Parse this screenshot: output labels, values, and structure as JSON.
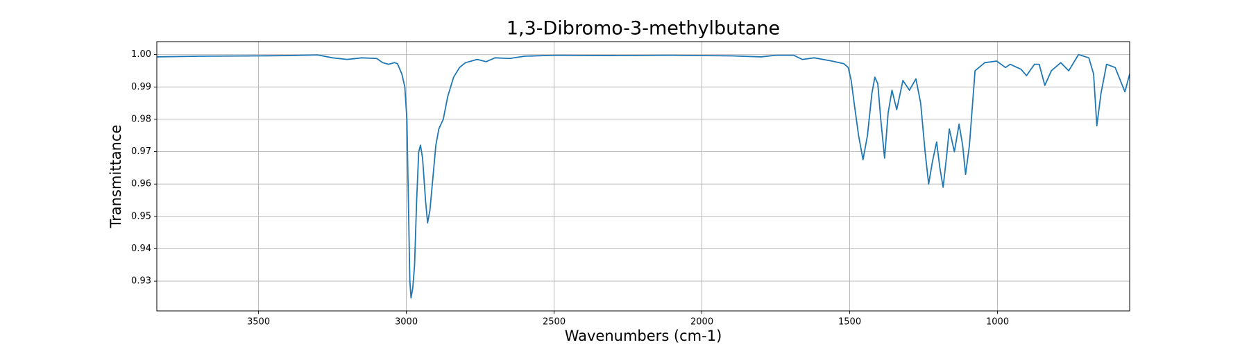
{
  "chart_data": {
    "type": "line",
    "title": "1,3-Dibromo-3-methylbutane",
    "xlabel": "Wavenumbers (cm-1)",
    "ylabel": "Transmittance",
    "color": "#1f77b4",
    "grid": true,
    "xlim": [
      3844,
      553
    ],
    "ylim": [
      0.9208,
      1.004
    ],
    "xticks": [
      3500,
      3000,
      2500,
      2000,
      1500,
      1000
    ],
    "yticks": [
      0.93,
      0.94,
      0.95,
      0.96,
      0.97,
      0.98,
      0.99,
      {
        "value": 1,
        "label": "1.00"
      }
    ],
    "x": [
      3844,
      3700,
      3500,
      3400,
      3300,
      3250,
      3200,
      3150,
      3100,
      3080,
      3060,
      3040,
      3030,
      3015,
      3005,
      2998,
      2993,
      2988,
      2984,
      2978,
      2972,
      2965,
      2958,
      2952,
      2945,
      2935,
      2928,
      2920,
      2910,
      2900,
      2890,
      2875,
      2860,
      2840,
      2820,
      2800,
      2760,
      2730,
      2700,
      2650,
      2600,
      2500,
      2300,
      2100,
      1900,
      1800,
      1750,
      1690,
      1660,
      1620,
      1560,
      1520,
      1505,
      1495,
      1485,
      1470,
      1455,
      1440,
      1425,
      1415,
      1405,
      1395,
      1382,
      1370,
      1357,
      1341,
      1320,
      1298,
      1276,
      1260,
      1245,
      1233,
      1220,
      1206,
      1195,
      1184,
      1173,
      1163,
      1146,
      1130,
      1118,
      1108,
      1095,
      1076,
      1043,
      1003,
      973,
      957,
      921,
      902,
      875,
      859,
      840,
      818,
      786,
      759,
      726,
      691,
      675,
      664,
      650,
      631,
      602,
      569,
      553
    ],
    "values": [
      0.9993,
      0.9995,
      0.9996,
      0.9997,
      0.9999,
      0.999,
      0.9985,
      0.999,
      0.9988,
      0.9975,
      0.997,
      0.9975,
      0.9972,
      0.994,
      0.99,
      0.98,
      0.955,
      0.93,
      0.9248,
      0.928,
      0.935,
      0.955,
      0.97,
      0.972,
      0.968,
      0.955,
      0.948,
      0.952,
      0.962,
      0.972,
      0.977,
      0.98,
      0.987,
      0.993,
      0.996,
      0.9975,
      0.9985,
      0.9978,
      0.999,
      0.9988,
      0.9995,
      0.9998,
      0.9997,
      0.9998,
      0.9996,
      0.9993,
      0.9998,
      0.9998,
      0.9985,
      0.999,
      0.998,
      0.9972,
      0.996,
      0.992,
      0.985,
      0.975,
      0.9675,
      0.975,
      0.988,
      0.993,
      0.991,
      0.98,
      0.968,
      0.982,
      0.989,
      0.983,
      0.992,
      0.989,
      0.9925,
      0.985,
      0.97,
      0.96,
      0.967,
      0.973,
      0.965,
      0.959,
      0.968,
      0.977,
      0.97,
      0.9785,
      0.972,
      0.963,
      0.972,
      0.995,
      0.9975,
      0.998,
      0.996,
      0.997,
      0.9955,
      0.9935,
      0.997,
      0.997,
      0.9905,
      0.995,
      0.9975,
      0.995,
      1,
      0.999,
      0.994,
      0.978,
      0.988,
      0.997,
      0.996,
      0.9885,
      0.994
    ]
  }
}
